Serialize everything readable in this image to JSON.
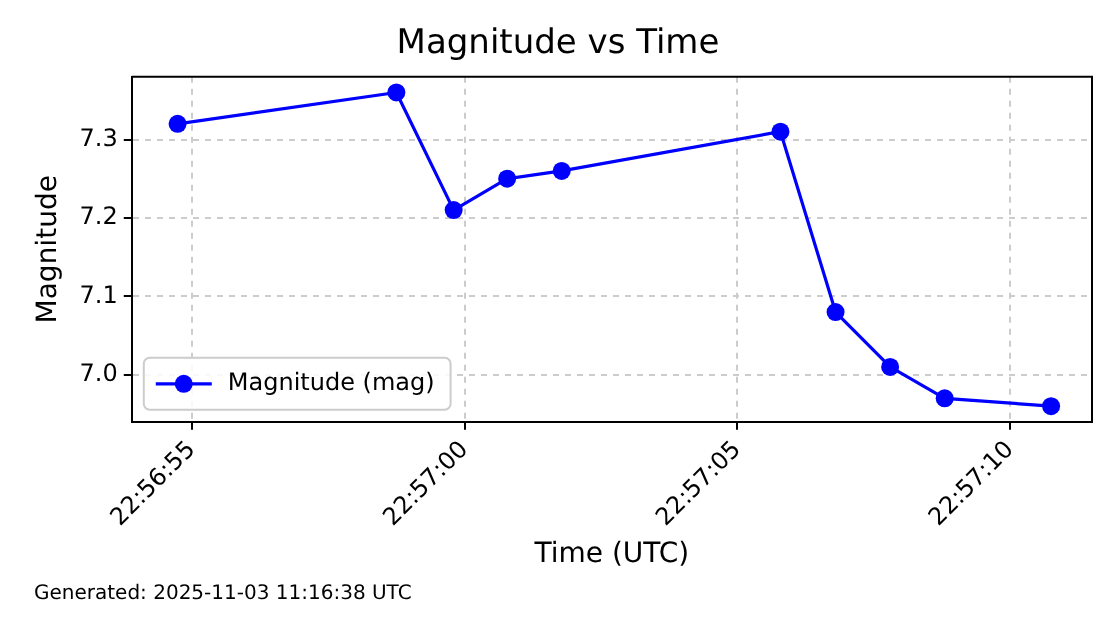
{
  "chart_data": {
    "type": "line",
    "title": "Magnitude vs Time",
    "xlabel": "Time (UTC)",
    "ylabel": "Magnitude",
    "x": [
      "2025-11-03T22:56:54.740",
      "2025-11-03T22:56:58.750",
      "2025-11-03T22:56:59.800",
      "2025-11-03T22:57:00.780",
      "2025-11-03T22:57:01.780",
      "2025-11-03T22:57:05.790",
      "2025-11-03T22:57:06.800",
      "2025-11-03T22:57:07.800",
      "2025-11-03T22:57:08.800",
      "2025-11-03T22:57:10.750"
    ],
    "series": [
      {
        "name": "Magnitude (mag)",
        "color": "#0000ff",
        "values": [
          7.32,
          7.36,
          7.21,
          7.25,
          7.26,
          7.31,
          7.08,
          7.01,
          6.97,
          6.96
        ]
      }
    ],
    "xlim": [
      "2025-11-03T22:56:53.900",
      "2025-11-03T22:57:11.500"
    ],
    "xticks": [
      {
        "value": "2025-11-03T22:56:55",
        "label": "22:56:55"
      },
      {
        "value": "2025-11-03T22:57:00",
        "label": "22:57:00"
      },
      {
        "value": "2025-11-03T22:57:05",
        "label": "22:57:05"
      },
      {
        "value": "2025-11-03T22:57:10",
        "label": "22:57:10"
      }
    ],
    "ylim": [
      6.94,
      7.38
    ],
    "yticks": [
      {
        "value": 7.0,
        "label": "7.0"
      },
      7.1,
      7.2,
      7.3
    ],
    "grid": true,
    "legend": "bottom left",
    "marker": "circle",
    "line_style": "solid",
    "annotations": [
      "Generated: 2025-11-03 11:16:38 UTC"
    ]
  }
}
